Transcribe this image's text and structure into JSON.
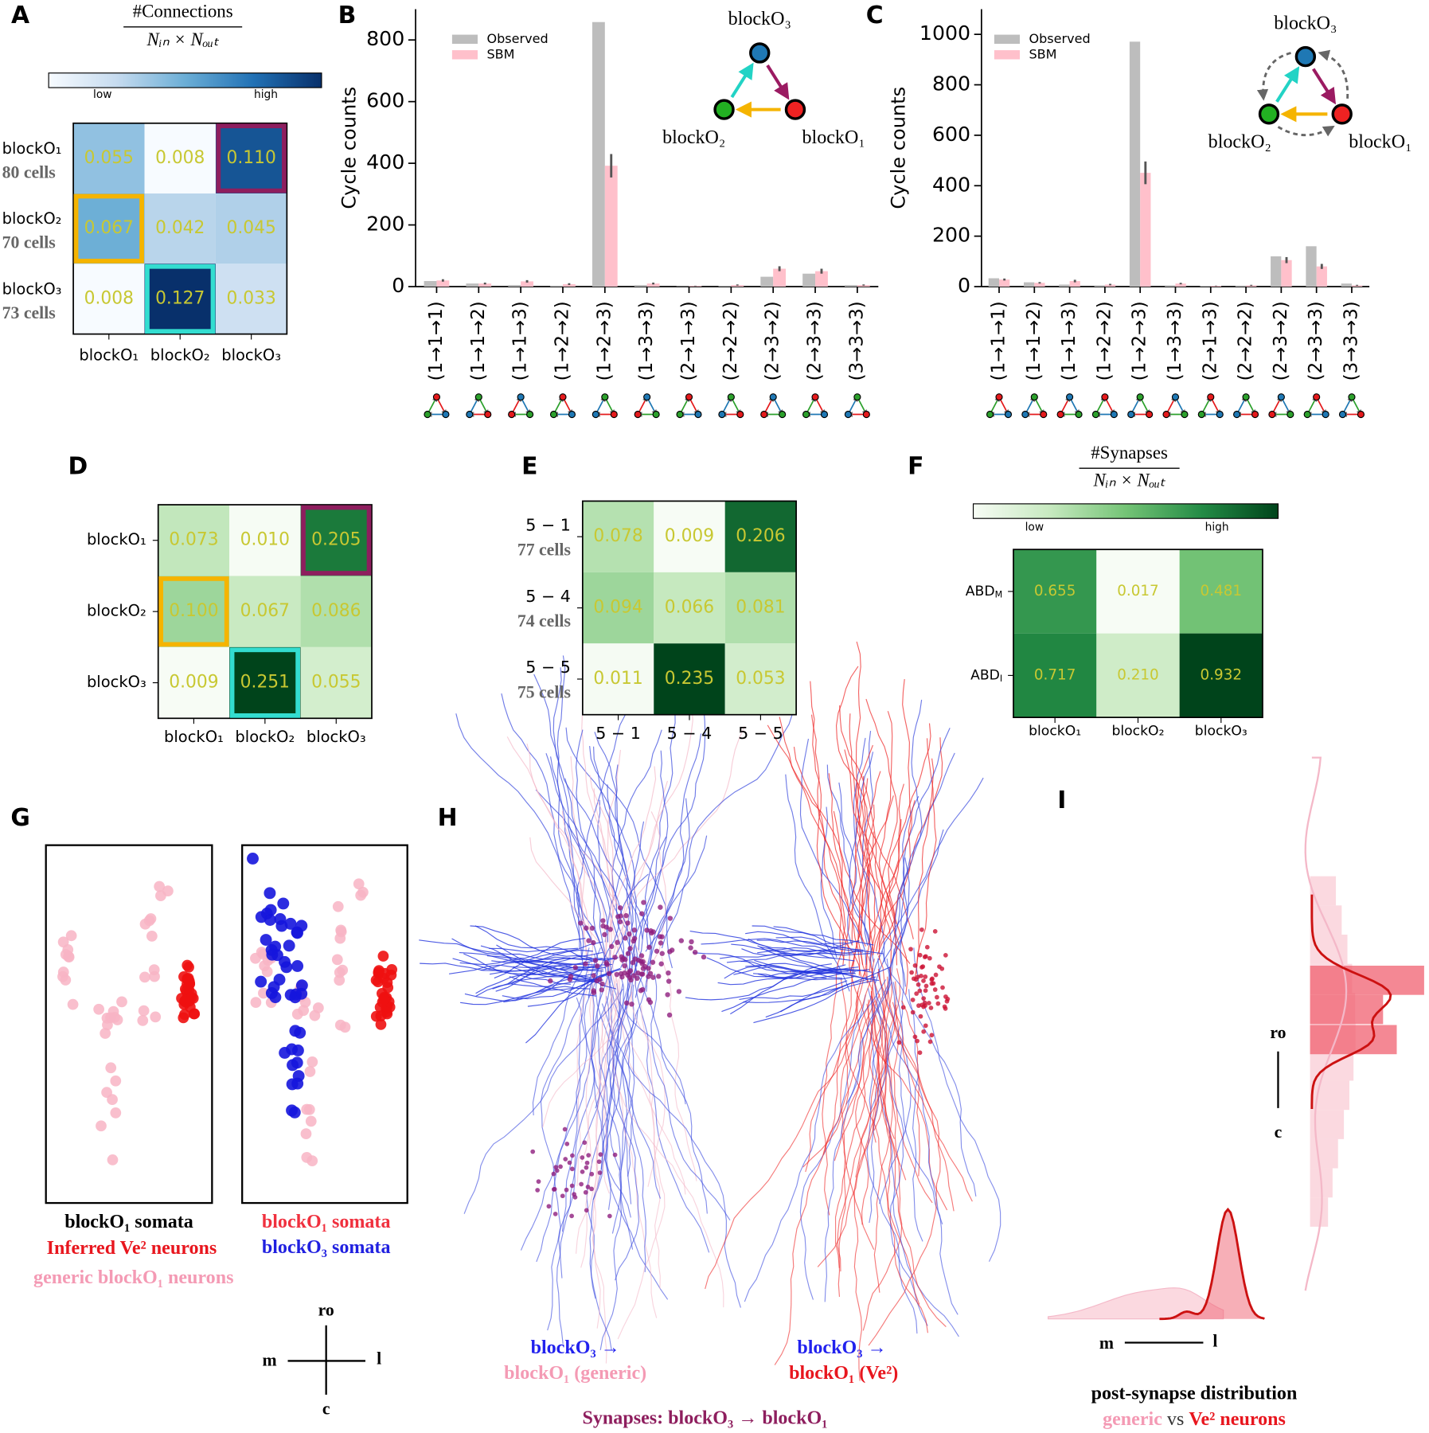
{
  "panel_labels": [
    "A",
    "B",
    "C",
    "D",
    "E",
    "F",
    "G",
    "H",
    "I"
  ],
  "chart_data": [
    {
      "type": "heatmap",
      "colorbar_title": [
        "#Connections",
        "Nᵢₙ × Nₒᵤₜ"
      ],
      "colorbar_labels": [
        "low",
        "high"
      ],
      "rows": [
        "blockO₁",
        "blockO₂",
        "blockO₃"
      ],
      "row_sublabels": [
        "80 cells",
        "70 cells",
        "73 cells"
      ],
      "columns": [
        "blockO₁",
        "blockO₂",
        "blockO₃"
      ],
      "values": [
        [
          0.055,
          0.008,
          0.11
        ],
        [
          0.067,
          0.042,
          0.045
        ],
        [
          0.008,
          0.127,
          0.033
        ]
      ],
      "value_labels": [
        [
          "0.055",
          "0.008",
          "0.110"
        ],
        [
          "0.067",
          "0.042",
          "0.045"
        ],
        [
          "0.008",
          "0.127",
          "0.033"
        ]
      ],
      "cmap": [
        "#f7fbff",
        "#c6dbef",
        "#6baed6",
        "#2171b5",
        "#08306b"
      ],
      "value_color": "#c8c832",
      "highlights": [
        {
          "row": 0,
          "col": 2,
          "color": "#8e1e5e"
        },
        {
          "row": 1,
          "col": 0,
          "color": "#f5b400"
        },
        {
          "row": 2,
          "col": 1,
          "color": "#33ddd0"
        }
      ]
    },
    {
      "type": "bar",
      "ylabel": "Cycle counts",
      "ylim": [
        0,
        900
      ],
      "yticks": [
        0,
        200,
        400,
        600,
        800
      ],
      "categories": [
        "(1→1→1)",
        "(1→1→2)",
        "(1→1→3)",
        "(1→2→2)",
        "(1→2→3)",
        "(1→3→3)",
        "(2→1→3)",
        "(2→2→2)",
        "(2→3→2)",
        "(2→3→3)",
        "(3→3→3)"
      ],
      "series": [
        {
          "name": "Observed",
          "color": "#bdbdbd",
          "values": [
            18,
            10,
            5,
            3,
            858,
            5,
            1,
            2,
            32,
            42,
            5
          ]
        },
        {
          "name": "SBM",
          "color": "#ffc0cb",
          "values": [
            20,
            10,
            17,
            8,
            392,
            10,
            2,
            5,
            58,
            50,
            5
          ],
          "errors": [
            4,
            3,
            4,
            3,
            38,
            3,
            1,
            2,
            8,
            8,
            2
          ]
        }
      ],
      "inset_labels": [
        "blockO₃",
        "blockO₂",
        "blockO₁"
      ],
      "inset_dashed": false
    },
    {
      "type": "bar",
      "ylabel": "Cycle counts",
      "ylim": [
        0,
        1100
      ],
      "yticks": [
        0,
        200,
        400,
        600,
        800,
        1000
      ],
      "categories": [
        "(1→1→1)",
        "(1→1→2)",
        "(1→1→3)",
        "(1→2→2)",
        "(1→2→3)",
        "(1→3→3)",
        "(2→1→3)",
        "(2→2→2)",
        "(2→3→2)",
        "(2→3→3)",
        "(3→3→3)"
      ],
      "series": [
        {
          "name": "Observed",
          "color": "#bdbdbd",
          "values": [
            33,
            17,
            8,
            5,
            971,
            5,
            3,
            4,
            120,
            160,
            12
          ]
        },
        {
          "name": "SBM",
          "color": "#ffc0cb",
          "values": [
            28,
            15,
            22,
            8,
            451,
            12,
            3,
            5,
            105,
            80,
            5
          ],
          "errors": [
            4,
            3,
            5,
            3,
            45,
            3,
            1,
            2,
            12,
            10,
            2
          ]
        }
      ],
      "inset_labels": [
        "blockO₃",
        "blockO₂",
        "blockO₁"
      ],
      "inset_dashed": true
    },
    {
      "type": "heatmap",
      "rows": [
        "blockO₁",
        "blockO₂",
        "blockO₃"
      ],
      "columns": [
        "blockO₁",
        "blockO₂",
        "blockO₃"
      ],
      "values": [
        [
          0.073,
          0.01,
          0.205
        ],
        [
          0.1,
          0.067,
          0.086
        ],
        [
          0.009,
          0.251,
          0.055
        ]
      ],
      "value_labels": [
        [
          "0.073",
          "0.010",
          "0.205"
        ],
        [
          "0.100",
          "0.067",
          "0.086"
        ],
        [
          "0.009",
          "0.251",
          "0.055"
        ]
      ],
      "cmap": [
        "#f7fcf5",
        "#c7e9c0",
        "#74c476",
        "#238b45",
        "#00441b"
      ],
      "value_color": "#c8c832",
      "highlights": [
        {
          "row": 0,
          "col": 2,
          "color": "#8e1e5e"
        },
        {
          "row": 1,
          "col": 0,
          "color": "#f5b400"
        },
        {
          "row": 2,
          "col": 1,
          "color": "#33ddd0"
        }
      ]
    },
    {
      "type": "heatmap",
      "rows": [
        "5 − 1",
        "5 − 4",
        "5 − 5"
      ],
      "row_sublabels": [
        "77 cells",
        "74 cells",
        "75 cells"
      ],
      "columns": [
        "5 − 1",
        "5 − 4",
        "5 − 5"
      ],
      "values": [
        [
          0.078,
          0.009,
          0.206
        ],
        [
          0.094,
          0.066,
          0.081
        ],
        [
          0.011,
          0.235,
          0.053
        ]
      ],
      "value_labels": [
        [
          "0.078",
          "0.009",
          "0.206"
        ],
        [
          "0.094",
          "0.066",
          "0.081"
        ],
        [
          "0.011",
          "0.235",
          "0.053"
        ]
      ],
      "cmap": [
        "#f7fcf5",
        "#c7e9c0",
        "#74c476",
        "#238b45",
        "#00441b"
      ],
      "value_color": "#c8c832"
    },
    {
      "type": "heatmap",
      "colorbar_title": [
        "#Synapses",
        "Nᵢₙ × Nₒᵤₜ"
      ],
      "colorbar_labels": [
        "low",
        "high"
      ],
      "rows": [
        "ABD",
        "ABD"
      ],
      "row_subscripts": [
        "M",
        "I"
      ],
      "columns": [
        "blockO₁",
        "blockO₂",
        "blockO₃"
      ],
      "values": [
        [
          0.655,
          0.017,
          0.481
        ],
        [
          0.717,
          0.21,
          0.932
        ]
      ],
      "value_labels": [
        [
          "0.655",
          "0.017",
          "0.481"
        ],
        [
          "0.717",
          "0.210",
          "0.932"
        ]
      ],
      "cmap": [
        "#f7fcf5",
        "#c7e9c0",
        "#74c476",
        "#238b45",
        "#00441b"
      ],
      "value_color": "#c8c832"
    }
  ],
  "panel_g": {
    "left_caption": [
      "blockO₁ somata",
      "Inferred Ve² neurons",
      "generic blockO₁ neurons"
    ],
    "right_caption": [
      "blockO₁ somata",
      "blockO₃ somata"
    ],
    "compass": [
      "ro",
      "m",
      "l",
      "c"
    ]
  },
  "panel_h": {
    "left_caption": [
      "blockO₃ →",
      "blockO₁ (generic)"
    ],
    "right_caption": [
      "blockO₃ →",
      "blockO₁ (Ve²)"
    ],
    "footer": "Synapses: blockO₃ → blockO₁"
  },
  "panel_i": {
    "compass": [
      "ro",
      "c",
      "m",
      "l"
    ],
    "title": "post-synapse distribution",
    "subtitle": [
      "generic",
      "vs",
      "Ve² neurons"
    ]
  }
}
